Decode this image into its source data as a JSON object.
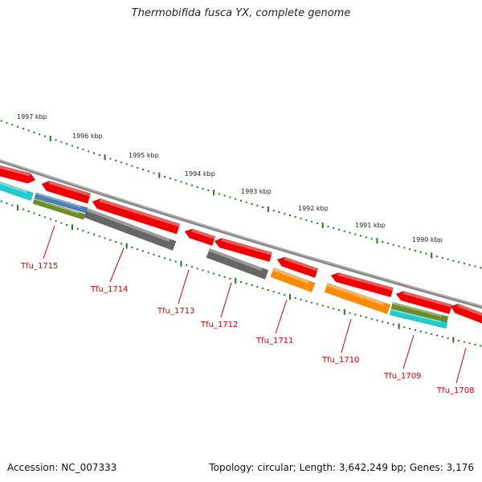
{
  "title": "Thermobifida fusca YX, complete genome",
  "footer": {
    "accession": "Accession: NC_007333",
    "info": "Topology: circular; Length: 3,642,249 bp; Genes: 3,176"
  },
  "scale_labels": [
    "1997 kbp",
    "1996 kbp",
    "1995 kbp",
    "1994 kbp",
    "1993 kbp",
    "1992 kbp",
    "1991 kbp",
    "1990 kbp"
  ],
  "gene_labels": [
    "Tfu_1715",
    "Tfu_1714",
    "Tfu_1713",
    "Tfu_1712",
    "Tfu_1711",
    "Tfu_1710",
    "Tfu_1709",
    "Tfu_1708"
  ],
  "colors": {
    "cds": "#ee0000",
    "backbone": "#888888",
    "tick": "#1a7a1a",
    "label": "#cc0000",
    "gray_feature": "#666666",
    "orange_feature": "#ff8c00",
    "cyan_feature": "#22cccc",
    "olive_feature": "#6b8e23",
    "blue_feature": "#4682b4"
  }
}
